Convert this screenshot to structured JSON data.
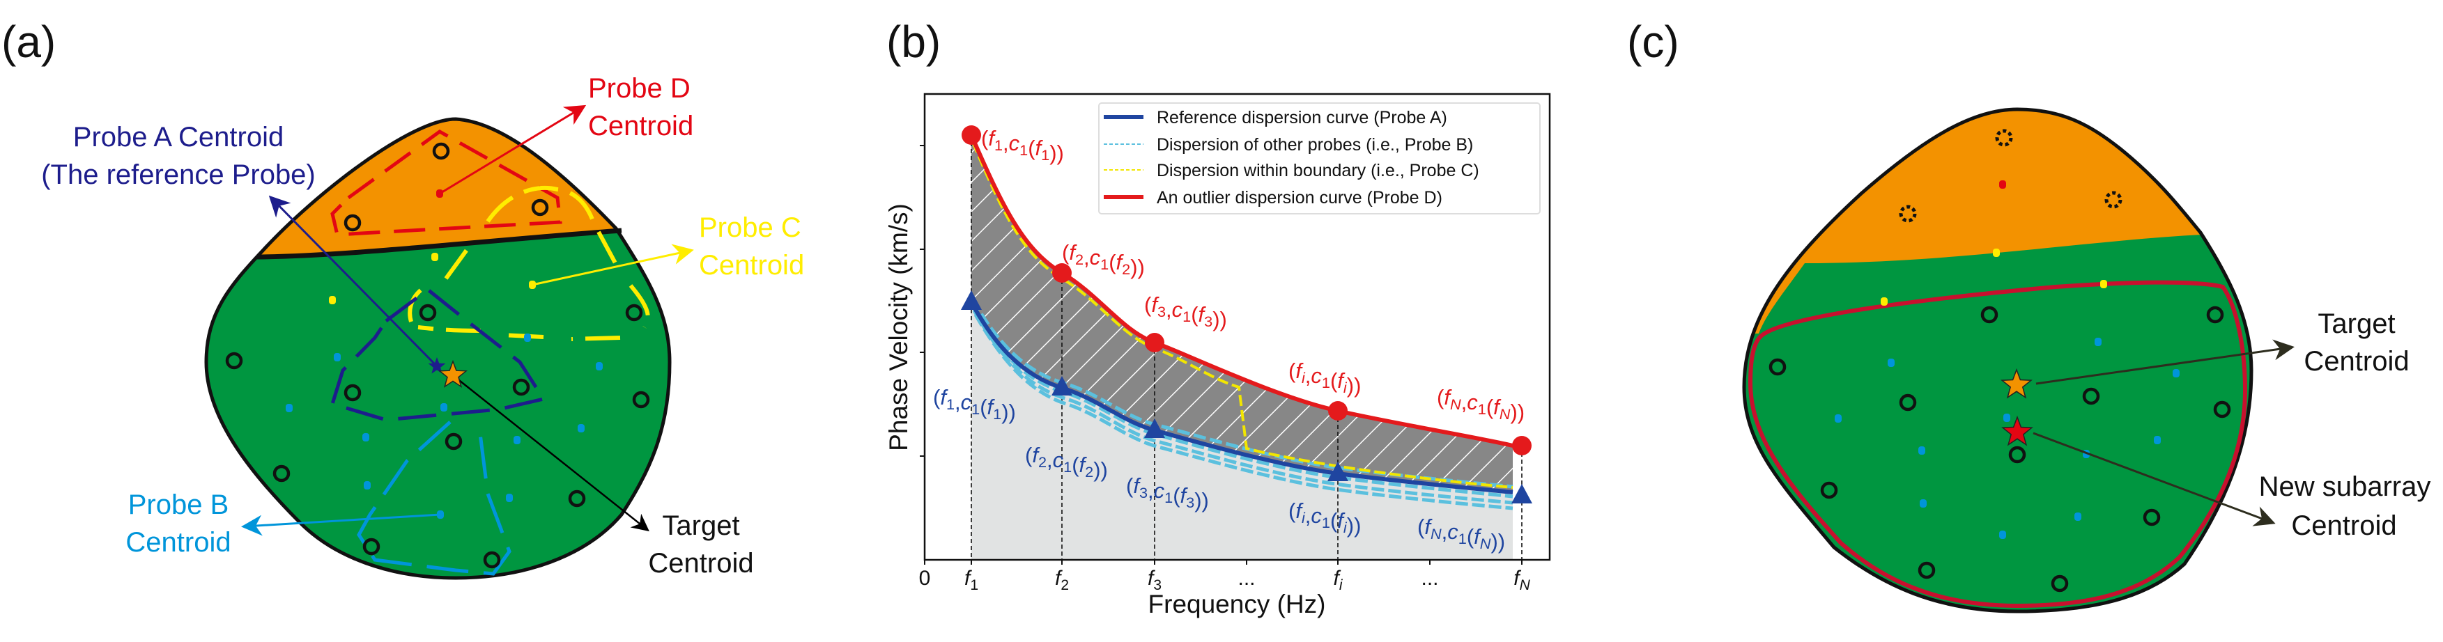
{
  "colors": {
    "orange_zone": "#f39200",
    "green_zone": "#009640",
    "probe_a": "#1d1d8c",
    "probe_b": "#0095da",
    "probe_c": "#ffed00",
    "probe_d": "#e30613",
    "subarray_boundary": "#c8102e",
    "reference_curve": "#1f45a0",
    "outlier_curve": "#e41a1c"
  },
  "panel_a": {
    "label": "(a)",
    "probe_d": [
      "Probe D",
      "Centroid"
    ],
    "probe_a": [
      "Probe A Centroid",
      "(The reference Probe)"
    ],
    "probe_c": [
      "Probe C",
      "Centroid"
    ],
    "probe_b": [
      "Probe B",
      "Centroid"
    ],
    "target": [
      "Target",
      "Centroid"
    ]
  },
  "panel_b": {
    "label": "(b)",
    "xlabel": "Frequency (Hz)",
    "ylabel": "Phase Velocity (km/s)",
    "legend": [
      {
        "label": "Reference dispersion curve (Probe A)",
        "color": "#1f45a0",
        "style": "solid"
      },
      {
        "label": "Dispersion of other probes (i.e., Probe B)",
        "color": "#5bc0de",
        "style": "dashed"
      },
      {
        "label": "Dispersion within boundary (i.e., Probe C)",
        "color": "#f2e600",
        "style": "dashed"
      },
      {
        "label": "An outlier dispersion curve (Probe D)",
        "color": "#e41a1c",
        "style": "solid"
      }
    ],
    "x_ticks": [
      [
        [
          "0",
          ""
        ]
      ],
      [
        [
          "f",
          "i"
        ],
        [
          "1",
          "s"
        ]
      ],
      [
        [
          "f",
          "i"
        ],
        [
          "2",
          "s"
        ]
      ],
      [
        [
          "f",
          "i"
        ],
        [
          "3",
          "s"
        ]
      ],
      [
        [
          "...",
          ""
        ]
      ],
      [
        [
          "f",
          "i"
        ],
        [
          "i",
          "is"
        ]
      ],
      [
        [
          "...",
          ""
        ]
      ],
      [
        [
          "f",
          "i"
        ],
        [
          "N",
          "is"
        ]
      ]
    ],
    "outlier_labels": [
      [
        [
          "(",
          ""
        ],
        [
          "f",
          "i"
        ],
        [
          "1",
          "s"
        ],
        [
          ",",
          ""
        ],
        [
          "c",
          "i"
        ],
        [
          "1",
          "s"
        ],
        [
          "(",
          ""
        ],
        [
          "f",
          "i"
        ],
        [
          "1",
          "s"
        ],
        [
          "))",
          ""
        ]
      ],
      [
        [
          "(",
          ""
        ],
        [
          "f",
          "i"
        ],
        [
          "2",
          "s"
        ],
        [
          ",",
          ""
        ],
        [
          "c",
          "i"
        ],
        [
          "1",
          "s"
        ],
        [
          "(",
          ""
        ],
        [
          "f",
          "i"
        ],
        [
          "2",
          "s"
        ],
        [
          "))",
          ""
        ]
      ],
      [
        [
          "(",
          ""
        ],
        [
          "f",
          "i"
        ],
        [
          "3",
          "s"
        ],
        [
          ",",
          ""
        ],
        [
          "c",
          "i"
        ],
        [
          "1",
          "s"
        ],
        [
          "(",
          ""
        ],
        [
          "f",
          "i"
        ],
        [
          "3",
          "s"
        ],
        [
          "))",
          ""
        ]
      ],
      [
        [
          "(",
          ""
        ],
        [
          "f",
          "i"
        ],
        [
          "i",
          "is"
        ],
        [
          ",",
          ""
        ],
        [
          "c",
          "i"
        ],
        [
          "1",
          "s"
        ],
        [
          "(",
          ""
        ],
        [
          "f",
          "i"
        ],
        [
          "i",
          "is"
        ],
        [
          "))",
          ""
        ]
      ],
      [
        [
          "(",
          ""
        ],
        [
          "f",
          "i"
        ],
        [
          "N",
          "is"
        ],
        [
          ",",
          ""
        ],
        [
          "c",
          "i"
        ],
        [
          "1",
          "s"
        ],
        [
          "(",
          ""
        ],
        [
          "f",
          "i"
        ],
        [
          "N",
          "is"
        ],
        [
          "))",
          ""
        ]
      ]
    ],
    "reference_labels": [
      [
        [
          "(",
          ""
        ],
        [
          "f",
          "i"
        ],
        [
          "1",
          "s"
        ],
        [
          ",",
          ""
        ],
        [
          "c",
          "i"
        ],
        [
          "1",
          "s"
        ],
        [
          "(",
          ""
        ],
        [
          "f",
          "i"
        ],
        [
          "1",
          "s"
        ],
        [
          "))",
          ""
        ]
      ],
      [
        [
          "(",
          ""
        ],
        [
          "f",
          "i"
        ],
        [
          "2",
          "s"
        ],
        [
          ",",
          ""
        ],
        [
          "c",
          "i"
        ],
        [
          "1",
          "s"
        ],
        [
          "(",
          ""
        ],
        [
          "f",
          "i"
        ],
        [
          "2",
          "s"
        ],
        [
          "))",
          ""
        ]
      ],
      [
        [
          "(",
          ""
        ],
        [
          "f",
          "i"
        ],
        [
          "3",
          "s"
        ],
        [
          ",",
          ""
        ],
        [
          "c",
          "i"
        ],
        [
          "1",
          "s"
        ],
        [
          "(",
          ""
        ],
        [
          "f",
          "i"
        ],
        [
          "3",
          "s"
        ],
        [
          "))",
          ""
        ]
      ],
      [
        [
          "(",
          ""
        ],
        [
          "f",
          "i"
        ],
        [
          "i",
          "is"
        ],
        [
          ",",
          ""
        ],
        [
          "c",
          "i"
        ],
        [
          "1",
          "s"
        ],
        [
          "(",
          ""
        ],
        [
          "f",
          "i"
        ],
        [
          "i",
          "is"
        ],
        [
          "))",
          ""
        ]
      ],
      [
        [
          "(",
          ""
        ],
        [
          "f",
          "i"
        ],
        [
          "N",
          "is"
        ],
        [
          ",",
          ""
        ],
        [
          "c",
          "i"
        ],
        [
          "1",
          "s"
        ],
        [
          "(",
          ""
        ],
        [
          "f",
          "i"
        ],
        [
          "N",
          "is"
        ],
        [
          "))",
          ""
        ]
      ]
    ]
  },
  "panel_c": {
    "label": "(c)",
    "target": [
      "Target",
      "Centroid"
    ],
    "new_subarray": [
      "New subarray",
      "Centroid"
    ]
  }
}
